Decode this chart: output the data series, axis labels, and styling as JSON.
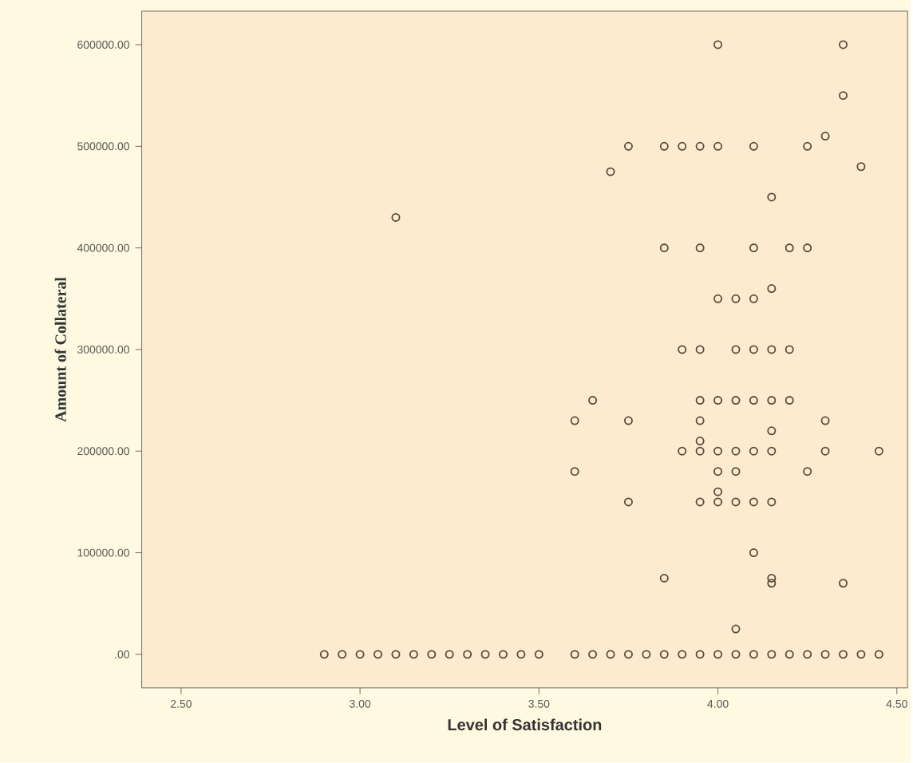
{
  "chart_data": {
    "type": "scatter",
    "xlabel": "Level of Satisfaction",
    "ylabel": "Amount of Collateral",
    "xlim": [
      2.39,
      4.53
    ],
    "ylim": [
      -33000,
      633000
    ],
    "xticks": [
      {
        "value": 2.5,
        "label": "2.50"
      },
      {
        "value": 3.0,
        "label": "3.00"
      },
      {
        "value": 3.5,
        "label": "3.50"
      },
      {
        "value": 4.0,
        "label": "4.00"
      },
      {
        "value": 4.5,
        "label": "4.50"
      }
    ],
    "yticks": [
      {
        "value": 0,
        "label": ".00"
      },
      {
        "value": 100000,
        "label": "100000.00"
      },
      {
        "value": 200000,
        "label": "200000.00"
      },
      {
        "value": 300000,
        "label": "300000.00"
      },
      {
        "value": 400000,
        "label": "400000.00"
      },
      {
        "value": 500000,
        "label": "500000.00"
      },
      {
        "value": 600000,
        "label": "600000.00"
      }
    ],
    "marker": "circle",
    "grid": false,
    "series": [
      {
        "color": "#5a4a3a",
        "x": [
          2.9,
          2.95,
          3.0,
          3.05,
          3.1,
          3.15,
          3.2,
          3.25,
          3.3,
          3.35,
          3.4,
          3.45,
          3.5,
          3.6,
          3.65,
          3.7,
          3.75,
          3.8,
          3.85,
          3.9,
          3.95,
          4.0,
          4.05,
          4.1,
          4.15,
          4.2,
          4.25,
          4.3,
          4.35,
          4.4,
          4.45,
          3.9,
          3.95,
          4.05,
          4.1,
          4.15,
          4.2,
          3.65,
          3.95,
          4.0,
          4.05,
          4.1,
          4.15,
          4.2,
          3.6,
          3.75,
          3.95,
          4.3,
          4.15,
          3.95,
          3.9,
          3.95,
          4.0,
          4.05,
          4.1,
          4.15,
          4.3,
          4.45,
          3.6,
          4.0,
          4.05,
          4.25,
          4.0,
          3.75,
          3.95,
          4.0,
          4.05,
          4.1,
          4.15,
          4.1,
          3.85,
          4.15,
          4.15,
          4.35,
          4.05,
          4.0,
          4.35,
          4.35,
          4.3,
          3.75,
          3.85,
          3.9,
          3.95,
          4.0,
          4.1,
          4.25,
          4.4,
          3.7,
          4.15,
          3.85,
          3.95,
          4.1,
          4.2,
          4.25,
          4.15,
          4.0,
          4.05,
          4.1,
          3.1
        ],
        "values": [
          0,
          0,
          0,
          0,
          0,
          0,
          0,
          0,
          0,
          0,
          0,
          0,
          0,
          0,
          0,
          0,
          0,
          0,
          0,
          0,
          0,
          0,
          0,
          0,
          0,
          0,
          0,
          0,
          0,
          0,
          0,
          300000,
          300000,
          300000,
          300000,
          300000,
          300000,
          250000,
          250000,
          250000,
          250000,
          250000,
          250000,
          250000,
          230000,
          230000,
          230000,
          230000,
          220000,
          210000,
          200000,
          200000,
          200000,
          200000,
          200000,
          200000,
          200000,
          200000,
          180000,
          180000,
          180000,
          180000,
          160000,
          150000,
          150000,
          150000,
          150000,
          150000,
          150000,
          100000,
          75000,
          75000,
          70000,
          70000,
          25000,
          600000,
          600000,
          550000,
          510000,
          500000,
          500000,
          500000,
          500000,
          500000,
          500000,
          500000,
          480000,
          475000,
          450000,
          400000,
          400000,
          400000,
          400000,
          400000,
          360000,
          350000,
          350000,
          350000,
          430000
        ]
      }
    ]
  }
}
